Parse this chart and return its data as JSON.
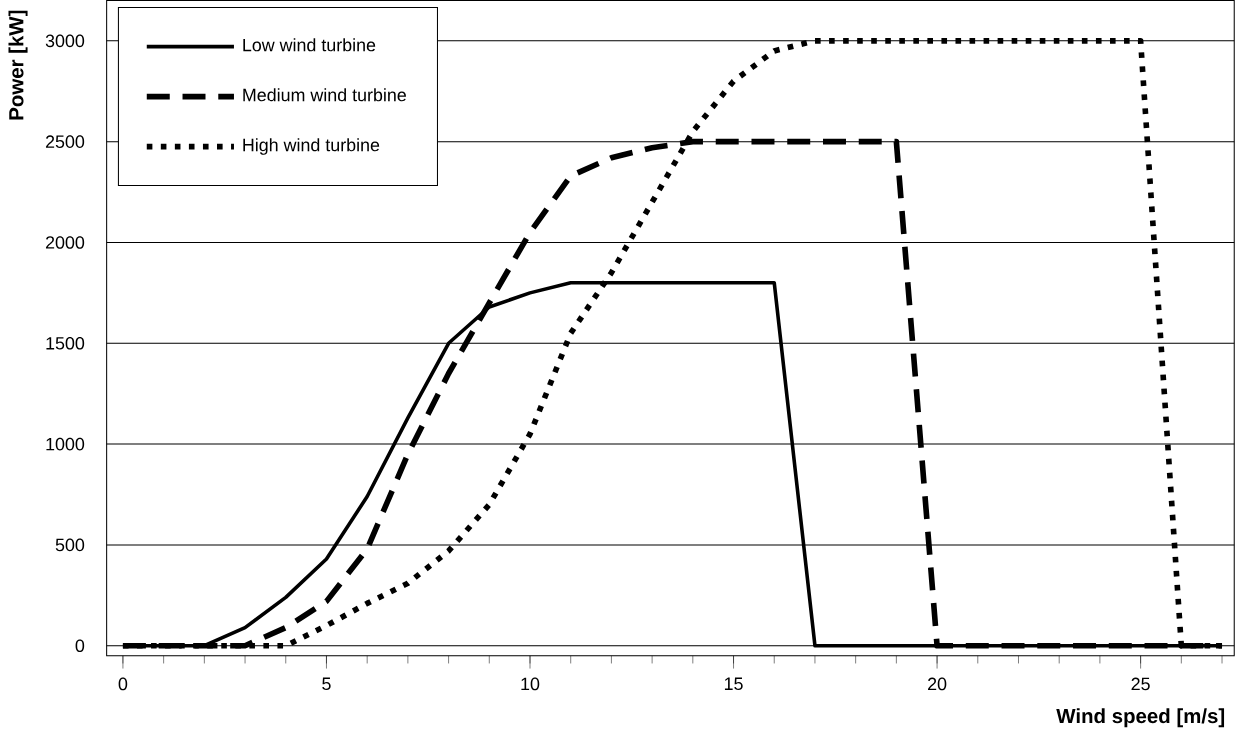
{
  "chart_data": {
    "type": "line",
    "xlabel": "Wind speed [m/s]",
    "ylabel": "Power [kW]",
    "x": [
      0,
      1,
      2,
      3,
      4,
      5,
      6,
      7,
      8,
      9,
      10,
      11,
      12,
      13,
      14,
      15,
      16,
      17,
      18,
      19,
      20,
      21,
      22,
      23,
      24,
      25,
      26,
      27
    ],
    "series": [
      {
        "name": "Low wind turbine",
        "color": "#000000",
        "line_style": "solid",
        "values": [
          0,
          0,
          0,
          90,
          240,
          430,
          740,
          1130,
          1500,
          1680,
          1750,
          1800,
          1800,
          1800,
          1800,
          1800,
          1800,
          0,
          0,
          0,
          0,
          0,
          0,
          0,
          0,
          0,
          0,
          0
        ]
      },
      {
        "name": "Medium wind turbine",
        "color": "#000000",
        "line_style": "dashed",
        "values": [
          0,
          0,
          0,
          0,
          90,
          220,
          480,
          950,
          1350,
          1700,
          2050,
          2330,
          2420,
          2470,
          2500,
          2500,
          2500,
          2500,
          2500,
          2500,
          0,
          0,
          0,
          0,
          0,
          0,
          0,
          0
        ]
      },
      {
        "name": "High wind turbine",
        "color": "#000000",
        "line_style": "dotted",
        "values": [
          0,
          0,
          0,
          0,
          0,
          100,
          210,
          310,
          470,
          700,
          1050,
          1550,
          1850,
          2200,
          2550,
          2800,
          2950,
          3000,
          3000,
          3000,
          3000,
          3000,
          3000,
          3000,
          3000,
          3000,
          0,
          0
        ]
      }
    ],
    "xlim": [
      -0.4,
      27.3
    ],
    "ylim": [
      -50,
      3200
    ],
    "xticks": [
      0,
      5,
      10,
      15,
      20,
      25
    ],
    "yticks": [
      0,
      500,
      1000,
      1500,
      2000,
      2500,
      3000
    ],
    "grid": "y",
    "legend": "top left",
    "marker": "none"
  }
}
